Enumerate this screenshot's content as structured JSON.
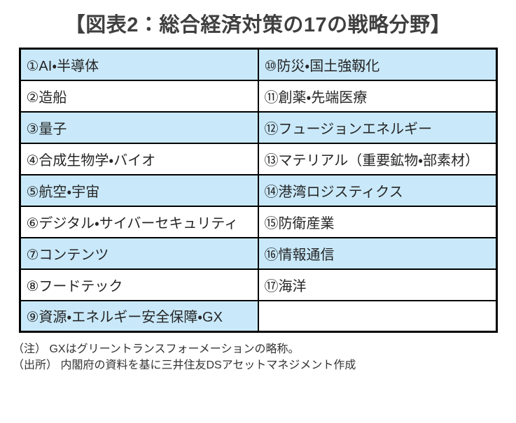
{
  "title": "【図表2：総合経済対策の17の戦略分野】",
  "table": {
    "rows": [
      {
        "left": "①AI・半導体",
        "right": "⑩防災・国土強靱化"
      },
      {
        "left": "②造船",
        "right": "⑪創薬・先端医療"
      },
      {
        "left": "③量子",
        "right": "⑫フュージョンエネルギー"
      },
      {
        "left": "④合成生物学・バイオ",
        "right": "⑬マテリアル（重要鉱物・部素材）"
      },
      {
        "left": "⑤航空・宇宙",
        "right": "⑭港湾ロジスティクス"
      },
      {
        "left": "⑥デジタル・サイバーセキュリティ",
        "right": "⑮防衛産業"
      },
      {
        "left": "⑦コンテンツ",
        "right": "⑯情報通信"
      },
      {
        "left": "⑧フードテック",
        "right": "⑰海洋"
      },
      {
        "left": "⑨資源・エネルギー安全保障・GX",
        "right": ""
      }
    ]
  },
  "notes": {
    "note": "（注） GXはグリーントランスフォーメーションの略称。",
    "source": "（出所） 内閣府の資料を基に三井住友DSアセットマネジメント作成"
  },
  "colors": {
    "row_highlight": "#c9e9fa",
    "row_plain": "#ffffff",
    "table_border": "#000000",
    "title_text": "#3f3f3f",
    "cell_text": "#262626",
    "note_text": "#333333"
  }
}
